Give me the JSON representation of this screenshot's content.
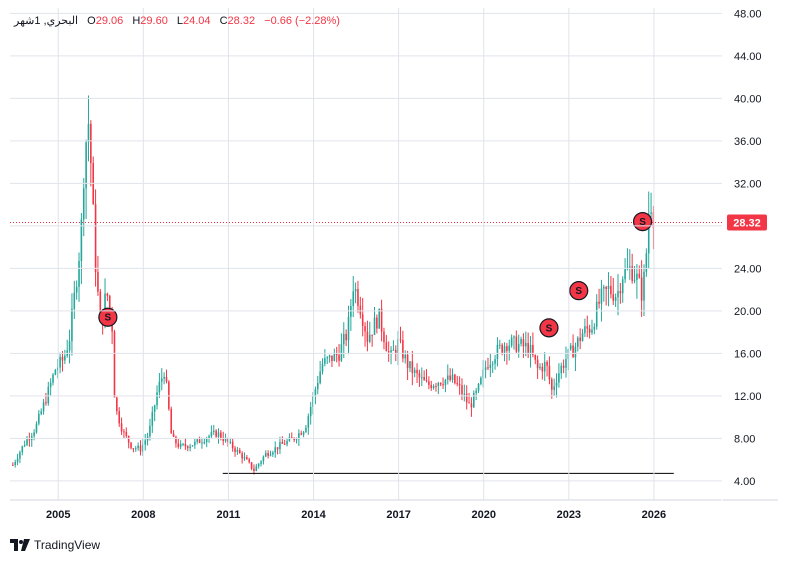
{
  "legend": {
    "symbol": "البحري, 1شهر",
    "open_key": "O",
    "open": "29.06",
    "high_key": "H",
    "high": "29.60",
    "low_key": "L",
    "low": "24.04",
    "close_key": "C",
    "close": "28.32",
    "change": "−0.66 (−2.28%)"
  },
  "brand": {
    "name": "TradingView",
    "icon": "tradingview-logo-icon"
  },
  "colors": {
    "up": "#26a69a",
    "down": "#f23645",
    "support": "#000000",
    "grid": "#e0e3eb"
  },
  "chart_data": {
    "type": "candlestick",
    "interval": "1M",
    "x_ticks": [
      "2005",
      "2008",
      "2011",
      "2014",
      "2017",
      "2020",
      "2023",
      "2026"
    ],
    "y_ticks": [
      "4.00",
      "8.00",
      "12.00",
      "16.00",
      "20.00",
      "24.00",
      "28.00",
      "32.00",
      "36.00",
      "40.00",
      "44.00",
      "48.00"
    ],
    "ylim": [
      2.2,
      48.5
    ],
    "xlim": [
      2003.3,
      2028.4
    ],
    "last_price": 28.32,
    "last_price_label": "28.32",
    "support_line": {
      "y": 4.7,
      "x_start": 2010.8,
      "x_end": 2026.7
    },
    "split_markers": [
      {
        "label": "S",
        "x": 2006.75,
        "y": 19.4
      },
      {
        "label": "S",
        "x": 2022.3,
        "y": 18.4
      },
      {
        "label": "S",
        "x": 2023.35,
        "y": 21.9
      },
      {
        "label": "S",
        "x": 2025.6,
        "y": 28.4
      }
    ],
    "anchors": [
      [
        2003.4,
        5.5
      ],
      [
        2003.8,
        7.5
      ],
      [
        2004.2,
        9.0
      ],
      [
        2004.6,
        12.0
      ],
      [
        2004.9,
        14.5
      ],
      [
        2005.2,
        15.5
      ],
      [
        2005.4,
        17.5
      ],
      [
        2005.6,
        22.0
      ],
      [
        2005.8,
        27.0
      ],
      [
        2005.9,
        33.0
      ],
      [
        2006.05,
        38.5
      ],
      [
        2006.15,
        34.0
      ],
      [
        2006.3,
        25.0
      ],
      [
        2006.5,
        18.0
      ],
      [
        2006.7,
        22.0
      ],
      [
        2006.9,
        18.5
      ],
      [
        2007.0,
        11.0
      ],
      [
        2007.3,
        8.5
      ],
      [
        2007.6,
        7.2
      ],
      [
        2007.9,
        7.0
      ],
      [
        2008.2,
        8.5
      ],
      [
        2008.5,
        12.5
      ],
      [
        2008.75,
        14.5
      ],
      [
        2009.0,
        8.0
      ],
      [
        2009.3,
        7.2
      ],
      [
        2009.8,
        7.5
      ],
      [
        2010.3,
        8.2
      ],
      [
        2010.6,
        8.5
      ],
      [
        2010.9,
        7.8
      ],
      [
        2011.3,
        6.8
      ],
      [
        2011.6,
        6.0
      ],
      [
        2011.9,
        5.0
      ],
      [
        2012.3,
        6.5
      ],
      [
        2012.8,
        7.3
      ],
      [
        2013.3,
        8.0
      ],
      [
        2013.7,
        9.0
      ],
      [
        2014.0,
        12.0
      ],
      [
        2014.3,
        15.0
      ],
      [
        2014.6,
        15.5
      ],
      [
        2014.9,
        16.0
      ],
      [
        2015.2,
        18.0
      ],
      [
        2015.4,
        22.5
      ],
      [
        2015.6,
        21.0
      ],
      [
        2015.9,
        17.5
      ],
      [
        2016.3,
        19.5
      ],
      [
        2016.7,
        15.5
      ],
      [
        2017.0,
        17.0
      ],
      [
        2017.3,
        15.0
      ],
      [
        2017.6,
        14.0
      ],
      [
        2018.0,
        13.0
      ],
      [
        2018.5,
        13.5
      ],
      [
        2018.9,
        13.5
      ],
      [
        2019.2,
        12.5
      ],
      [
        2019.5,
        11.0
      ],
      [
        2019.8,
        12.5
      ],
      [
        2020.1,
        15.0
      ],
      [
        2020.4,
        16.0
      ],
      [
        2020.8,
        17.0
      ],
      [
        2021.2,
        16.8
      ],
      [
        2021.6,
        16.5
      ],
      [
        2021.9,
        14.5
      ],
      [
        2022.2,
        15.0
      ],
      [
        2022.4,
        12.5
      ],
      [
        2022.6,
        14.0
      ],
      [
        2022.9,
        15.5
      ],
      [
        2023.2,
        16.5
      ],
      [
        2023.5,
        18.0
      ],
      [
        2023.8,
        18.5
      ],
      [
        2024.1,
        21.0
      ],
      [
        2024.4,
        22.0
      ],
      [
        2024.7,
        21.5
      ],
      [
        2024.9,
        23.5
      ],
      [
        2025.2,
        24.0
      ],
      [
        2025.4,
        23.0
      ],
      [
        2025.6,
        21.5
      ],
      [
        2025.75,
        26.0
      ],
      [
        2025.85,
        31.0
      ],
      [
        2025.95,
        29.5
      ],
      [
        2026.05,
        28.32
      ]
    ]
  }
}
